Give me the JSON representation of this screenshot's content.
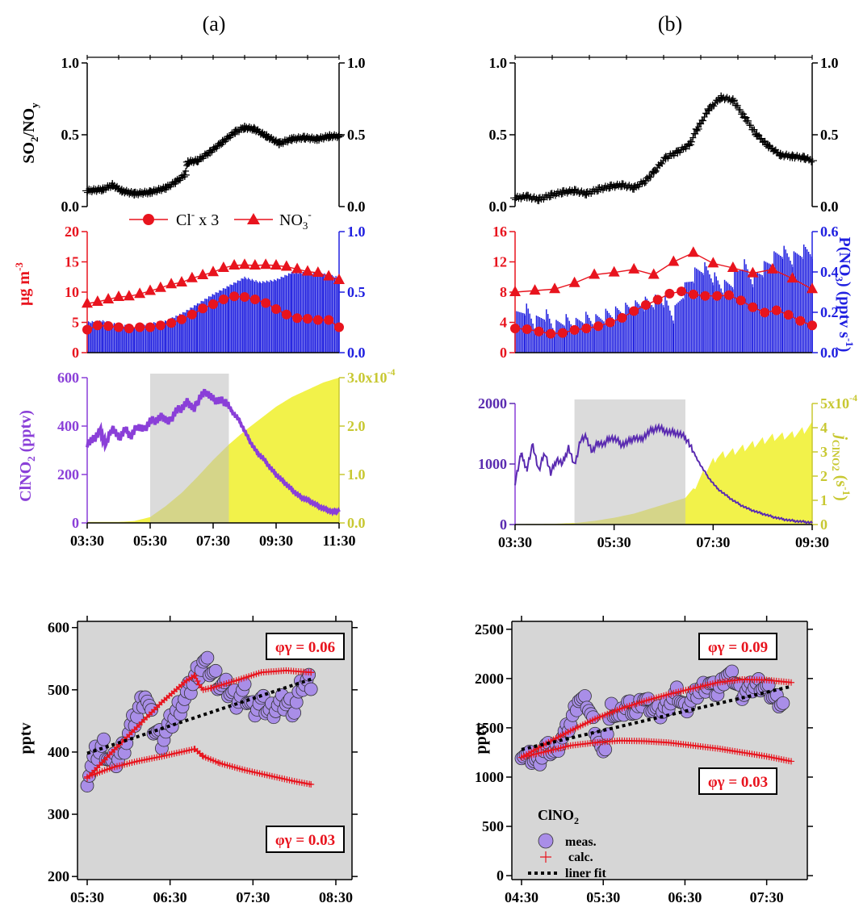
{
  "colors": {
    "black": "#000000",
    "red": "#e8141e",
    "blue": "#2020e0",
    "purple": "#8a3fd8",
    "purple_dark": "#5a2bb0",
    "yellow": "#f2f24a",
    "gray_band": "#bdbdbd",
    "panel_gray": "#d6d6d6",
    "marker_fill": "#a98ee8"
  },
  "panel_titles": {
    "a": "(a)",
    "b": "(b)"
  },
  "chart_data": [
    {
      "id": "a1",
      "type": "scatter",
      "ylabel": "SO2/NOy",
      "ylim": [
        0,
        1
      ],
      "yticks": [
        "0.0",
        "0.5",
        "1.0"
      ],
      "yticks_right": [
        "0.0",
        "0.5",
        "1.0"
      ],
      "x_hours": [
        3.5,
        11.5
      ],
      "series": [
        {
          "marker": "plus",
          "color": "#000000",
          "x": [
            3.5,
            4.0,
            4.3,
            4.6,
            5.0,
            5.5,
            6.0,
            6.3,
            6.6,
            6.7,
            7.0,
            7.4,
            7.8,
            8.2,
            8.5,
            8.8,
            9.2,
            9.6,
            10.0,
            10.4,
            10.8,
            11.2,
            11.5
          ],
          "y": [
            0.11,
            0.12,
            0.15,
            0.11,
            0.09,
            0.1,
            0.13,
            0.17,
            0.22,
            0.31,
            0.32,
            0.38,
            0.45,
            0.52,
            0.55,
            0.54,
            0.49,
            0.44,
            0.47,
            0.48,
            0.47,
            0.49,
            0.49
          ]
        }
      ]
    },
    {
      "id": "a2",
      "type": "bar+line",
      "ylabel": "μg m-3",
      "ylim": [
        0,
        20
      ],
      "yticks": [
        "0",
        "5",
        "10",
        "15",
        "20"
      ],
      "y2lim": [
        0,
        1
      ],
      "yticks_right": [
        "0.0",
        "0.5",
        "1.0"
      ],
      "x_hours": [
        3.5,
        11.5
      ],
      "legend": [
        {
          "name": "Cl- x 3",
          "marker": "circle"
        },
        {
          "name": "NO3-",
          "marker": "triangle"
        }
      ],
      "bars": {
        "color": "#2020e0",
        "x": [
          3.5,
          4.0,
          4.5,
          5.0,
          5.5,
          6.0,
          6.5,
          7.0,
          7.5,
          8.0,
          8.5,
          9.0,
          9.5,
          10.0,
          10.5,
          11.0,
          11.5
        ],
        "y": [
          0.25,
          0.26,
          0.23,
          0.21,
          0.24,
          0.26,
          0.32,
          0.4,
          0.48,
          0.55,
          0.62,
          0.58,
          0.6,
          0.66,
          0.66,
          0.65,
          0.62
        ]
      },
      "series": [
        {
          "name": "Cl- x 3",
          "marker": "circle",
          "x": [
            3.5,
            3.83,
            4.17,
            4.5,
            4.83,
            5.17,
            5.5,
            5.83,
            6.17,
            6.5,
            6.83,
            7.17,
            7.5,
            7.83,
            8.17,
            8.5,
            8.83,
            9.17,
            9.5,
            9.83,
            10.17,
            10.5,
            10.83,
            11.17,
            11.5
          ],
          "y": [
            3.8,
            4.5,
            4.4,
            4.2,
            4.0,
            4.2,
            4.2,
            4.5,
            4.9,
            5.5,
            6.3,
            7.3,
            8.0,
            8.8,
            9.3,
            9.2,
            8.8,
            8.2,
            7.2,
            6.3,
            5.7,
            5.6,
            5.4,
            5.4,
            4.2
          ]
        },
        {
          "name": "NO3-",
          "marker": "triangle",
          "x": [
            3.5,
            3.83,
            4.17,
            4.5,
            4.83,
            5.17,
            5.5,
            5.83,
            6.17,
            6.5,
            6.83,
            7.17,
            7.5,
            7.83,
            8.17,
            8.5,
            8.83,
            9.17,
            9.5,
            9.83,
            10.17,
            10.5,
            10.83,
            11.17,
            11.5
          ],
          "y": [
            8.1,
            8.4,
            8.8,
            9.2,
            9.3,
            9.7,
            10.2,
            10.7,
            11.3,
            11.6,
            12.3,
            12.8,
            13.3,
            14.0,
            14.4,
            14.5,
            14.4,
            14.5,
            14.4,
            14.2,
            13.8,
            13.4,
            13.2,
            12.6,
            12.0
          ]
        }
      ]
    },
    {
      "id": "a3",
      "type": "line+area",
      "ylabel": "ClNO2 (pptv)",
      "ylim": [
        0,
        600
      ],
      "yticks": [
        "0",
        "200",
        "400",
        "600"
      ],
      "y2lim": [
        0,
        3.0
      ],
      "yticks_right": [
        "0.0",
        "1.0",
        "2.0",
        "3.0x10-4"
      ],
      "xticks": [
        "03:30",
        "05:30",
        "07:30",
        "09:30",
        "11:30"
      ],
      "x_hours": [
        3.5,
        11.5
      ],
      "shaded": [
        5.5,
        8.0
      ],
      "line": {
        "color": "#8a3fd8",
        "x": [
          3.5,
          3.7,
          3.9,
          4.1,
          4.3,
          4.5,
          4.7,
          4.9,
          5.1,
          5.3,
          5.5,
          5.7,
          5.9,
          6.1,
          6.3,
          6.5,
          6.7,
          6.9,
          7.1,
          7.3,
          7.5,
          7.7,
          7.9,
          8.1,
          8.3,
          8.5,
          8.7,
          8.9,
          9.1,
          9.3,
          9.5,
          9.7,
          9.9,
          10.1,
          10.3,
          10.5,
          10.7,
          10.9,
          11.1,
          11.3,
          11.5
        ],
        "y": [
          330,
          345,
          380,
          325,
          395,
          350,
          385,
          360,
          400,
          385,
          420,
          425,
          440,
          415,
          460,
          475,
          500,
          470,
          525,
          540,
          510,
          505,
          500,
          460,
          430,
          380,
          330,
          290,
          265,
          230,
          200,
          175,
          150,
          125,
          105,
          95,
          80,
          65,
          55,
          45,
          50
        ]
      },
      "area": {
        "color": "#f2f24a",
        "x": [
          3.5,
          4.5,
          5.0,
          5.5,
          6.0,
          6.5,
          7.0,
          7.5,
          8.0,
          8.5,
          9.0,
          9.5,
          10.0,
          10.5,
          11.0,
          11.5
        ],
        "y": [
          0.02,
          0.02,
          0.04,
          0.12,
          0.35,
          0.62,
          0.95,
          1.3,
          1.62,
          1.9,
          2.15,
          2.4,
          2.6,
          2.75,
          2.9,
          3.0
        ]
      }
    },
    {
      "id": "b1",
      "type": "scatter",
      "ylim": [
        0,
        1
      ],
      "yticks": [
        "0.0",
        "0.5",
        "1.0"
      ],
      "yticks_right": [
        "0.0",
        "0.5",
        "1.0"
      ],
      "x_hours": [
        3.5,
        11.0
      ],
      "series": [
        {
          "marker": "plus",
          "color": "#000000",
          "x": [
            3.5,
            3.8,
            4.1,
            4.4,
            4.7,
            5.0,
            5.3,
            5.6,
            5.9,
            6.2,
            6.5,
            6.8,
            7.0,
            7.3,
            7.6,
            7.9,
            8.1,
            8.4,
            8.7,
            9.0,
            9.3,
            9.6,
            9.9,
            10.2,
            10.5,
            10.8,
            11.0
          ],
          "y": [
            0.06,
            0.07,
            0.05,
            0.08,
            0.1,
            0.11,
            0.09,
            0.12,
            0.14,
            0.15,
            0.13,
            0.18,
            0.24,
            0.34,
            0.38,
            0.43,
            0.54,
            0.68,
            0.76,
            0.74,
            0.62,
            0.5,
            0.42,
            0.36,
            0.35,
            0.34,
            0.32
          ]
        }
      ]
    },
    {
      "id": "b2",
      "type": "bar+line",
      "ylim": [
        0,
        16
      ],
      "yticks": [
        "0",
        "4",
        "8",
        "12",
        "16"
      ],
      "y2lim": [
        0,
        0.6
      ],
      "yticks_right": [
        "0.0",
        "0.2",
        "0.4",
        "0.6"
      ],
      "y2label": "P(NO3) (pptv s-1)",
      "x_hours": [
        3.5,
        11.0
      ],
      "bars": {
        "color": "#2020e0",
        "x": [
          3.5,
          3.75,
          4.0,
          4.25,
          4.5,
          4.75,
          5.0,
          5.25,
          5.5,
          5.75,
          6.0,
          6.25,
          6.5,
          6.75,
          7.0,
          7.25,
          7.5,
          7.75,
          8.0,
          8.25,
          8.5,
          8.75,
          9.0,
          9.25,
          9.5,
          9.75,
          10.0,
          10.25,
          10.5,
          10.75,
          11.0
        ],
        "y": [
          0.16,
          0.22,
          0.14,
          0.19,
          0.12,
          0.16,
          0.13,
          0.17,
          0.15,
          0.18,
          0.19,
          0.21,
          0.22,
          0.24,
          0.25,
          0.26,
          0.18,
          0.3,
          0.38,
          0.42,
          0.37,
          0.32,
          0.35,
          0.44,
          0.36,
          0.41,
          0.46,
          0.5,
          0.46,
          0.5,
          0.5
        ]
      },
      "series": [
        {
          "marker": "circle",
          "x": [
            3.5,
            3.8,
            4.1,
            4.4,
            4.7,
            5.0,
            5.3,
            5.6,
            5.9,
            6.2,
            6.5,
            6.8,
            7.1,
            7.4,
            7.7,
            8.0,
            8.3,
            8.6,
            8.9,
            9.2,
            9.5,
            9.8,
            10.1,
            10.4,
            10.7,
            11.0
          ],
          "y": [
            3.2,
            3.1,
            2.8,
            2.5,
            2.6,
            3.0,
            3.2,
            3.5,
            4.0,
            4.6,
            5.5,
            6.3,
            7.0,
            7.8,
            8.1,
            7.7,
            7.5,
            7.5,
            7.6,
            6.9,
            6.0,
            5.3,
            5.6,
            5.0,
            4.2,
            3.6
          ]
        },
        {
          "marker": "triangle",
          "x": [
            3.5,
            4.0,
            4.5,
            5.0,
            5.5,
            6.0,
            6.5,
            7.0,
            7.5,
            8.0,
            8.5,
            9.0,
            9.5,
            10.0,
            10.5,
            11.0
          ],
          "y": [
            8.0,
            8.2,
            8.4,
            9.2,
            10.3,
            10.6,
            11.0,
            10.3,
            12.0,
            13.2,
            11.8,
            11.2,
            10.5,
            11.0,
            9.8,
            8.4
          ]
        }
      ]
    },
    {
      "id": "b3",
      "type": "line+area",
      "ylim": [
        0,
        2500
      ],
      "yticks": [
        "0",
        "1000",
        "2000"
      ],
      "y2lim": [
        0,
        5
      ],
      "yticks_right": [
        "0",
        "1",
        "2",
        "3",
        "4",
        "5x10-4"
      ],
      "y2label": "jClNO2 (s-1)",
      "xticks": [
        "03:30",
        "05:30",
        "07:30",
        "09:30"
      ],
      "x_hours": [
        3.5,
        11.0
      ],
      "shaded": [
        5.0,
        7.8
      ],
      "line": {
        "color": "#5a2bb0",
        "x": [
          3.5,
          3.65,
          3.8,
          3.95,
          4.1,
          4.25,
          4.4,
          4.55,
          4.7,
          4.85,
          5.0,
          5.15,
          5.3,
          5.45,
          5.6,
          5.75,
          5.9,
          6.05,
          6.2,
          6.35,
          6.5,
          6.65,
          6.8,
          6.95,
          7.1,
          7.25,
          7.4,
          7.55,
          7.7,
          7.85,
          8.0,
          8.2,
          8.4,
          8.6,
          8.8,
          9.0,
          9.2,
          9.4,
          9.6,
          9.8,
          10.0,
          10.2,
          10.4,
          10.6,
          10.8,
          11.0
        ],
        "y": [
          880,
          1450,
          1150,
          1650,
          1100,
          1500,
          1050,
          1350,
          1250,
          1600,
          1200,
          1750,
          1800,
          1500,
          1700,
          1650,
          1800,
          1750,
          1650,
          1700,
          1800,
          1750,
          1850,
          1950,
          2000,
          1950,
          1900,
          1900,
          1850,
          1750,
          1500,
          1200,
          950,
          750,
          620,
          500,
          400,
          320,
          260,
          210,
          160,
          120,
          90,
          70,
          55,
          40
        ]
      },
      "area": {
        "color": "#f2f24a",
        "x": [
          3.5,
          4.5,
          5.0,
          5.5,
          6.0,
          6.5,
          7.0,
          7.5,
          7.8,
          8.0,
          8.3,
          8.6,
          9.0,
          9.5,
          10.0,
          10.5,
          10.8,
          11.0
        ],
        "y": [
          0.02,
          0.03,
          0.06,
          0.15,
          0.28,
          0.45,
          0.7,
          0.95,
          1.1,
          1.5,
          2.2,
          2.8,
          3.0,
          3.3,
          3.6,
          3.7,
          3.9,
          4.1
        ]
      }
    },
    {
      "id": "c",
      "type": "scatter+line",
      "ylabel": "pptv",
      "ylim": [
        195,
        610
      ],
      "yticks": [
        "200",
        "300",
        "400",
        "500",
        "600"
      ],
      "xticks": [
        "05:30",
        "06:30",
        "07:30",
        "08:30"
      ],
      "x_hours": [
        5.5,
        8.5
      ],
      "annotations": [
        "φγ = 0.06",
        "φγ = 0.03"
      ],
      "meas": {
        "x": [
          5.5,
          5.6,
          5.7,
          5.8,
          5.9,
          6.0,
          6.1,
          6.2,
          6.3,
          6.4,
          6.5,
          6.6,
          6.7,
          6.8,
          6.9,
          7.0,
          7.1,
          7.2,
          7.3,
          7.4,
          7.5,
          7.6,
          7.7,
          7.8,
          7.9,
          8.0,
          8.1,
          8.2
        ],
        "y": [
          360,
          395,
          410,
          380,
          395,
          430,
          460,
          495,
          440,
          420,
          445,
          470,
          490,
          520,
          545,
          530,
          510,
          500,
          485,
          495,
          470,
          480,
          465,
          475,
          480,
          470,
          510,
          515
        ]
      },
      "calc_high": {
        "x": [
          5.5,
          5.8,
          6.1,
          6.4,
          6.7,
          6.8,
          6.85,
          6.9,
          7.0,
          7.3,
          7.6,
          7.9,
          8.2
        ],
        "y": [
          358,
          400,
          440,
          480,
          515,
          523,
          508,
          500,
          503,
          515,
          528,
          531,
          528
        ]
      },
      "calc_low": {
        "x": [
          5.5,
          5.8,
          6.1,
          6.4,
          6.7,
          6.8,
          6.9,
          7.1,
          7.4,
          7.7,
          8.0,
          8.2
        ],
        "y": [
          360,
          375,
          385,
          393,
          402,
          405,
          393,
          382,
          371,
          362,
          353,
          348
        ]
      },
      "fit": {
        "x": [
          5.5,
          8.2
        ],
        "y": [
          398,
          517
        ]
      }
    },
    {
      "id": "d",
      "type": "scatter+line",
      "ylabel": "pptv",
      "ylim": [
        -40,
        2580
      ],
      "yticks": [
        "0",
        "500",
        "1000",
        "1500",
        "2000",
        "2500"
      ],
      "xticks": [
        "04:30",
        "05:30",
        "06:30",
        "07:30"
      ],
      "x_hours": [
        4.5,
        7.8
      ],
      "annotations": [
        "φγ = 0.09",
        "φγ = 0.03"
      ],
      "legend": {
        "title": "ClNO2",
        "items": [
          "meas.",
          "calc.",
          "liner fit"
        ]
      },
      "meas": {
        "x": [
          4.5,
          4.6,
          4.7,
          4.8,
          4.9,
          5.0,
          5.1,
          5.2,
          5.3,
          5.4,
          5.5,
          5.6,
          5.7,
          5.8,
          5.9,
          6.0,
          6.1,
          6.2,
          6.3,
          6.4,
          6.5,
          6.6,
          6.7,
          6.8,
          6.9,
          7.0,
          7.1,
          7.2,
          7.3,
          7.4,
          7.5,
          7.6,
          7.7
        ],
        "y": [
          1250,
          1200,
          1150,
          1300,
          1250,
          1400,
          1550,
          1800,
          1750,
          1500,
          1200,
          1700,
          1600,
          1750,
          1650,
          1800,
          1700,
          1650,
          1750,
          1850,
          1700,
          1800,
          1900,
          1950,
          1850,
          2050,
          2000,
          1850,
          1900,
          1950,
          1900,
          1800,
          1750
        ]
      },
      "calc_high": {
        "x": [
          4.5,
          4.8,
          5.1,
          5.4,
          5.7,
          6.0,
          6.3,
          6.6,
          6.9,
          7.2,
          7.5,
          7.8
        ],
        "y": [
          1200,
          1340,
          1470,
          1590,
          1690,
          1770,
          1840,
          1900,
          1960,
          1990,
          1985,
          1960
        ]
      },
      "calc_low": {
        "x": [
          4.5,
          4.8,
          5.1,
          5.4,
          5.7,
          6.0,
          6.3,
          6.6,
          6.9,
          7.2,
          7.5,
          7.8
        ],
        "y": [
          1200,
          1260,
          1320,
          1350,
          1370,
          1365,
          1350,
          1320,
          1290,
          1250,
          1210,
          1160
        ]
      },
      "fit": {
        "x": [
          4.5,
          7.8
        ],
        "y": [
          1280,
          1920
        ]
      }
    }
  ]
}
